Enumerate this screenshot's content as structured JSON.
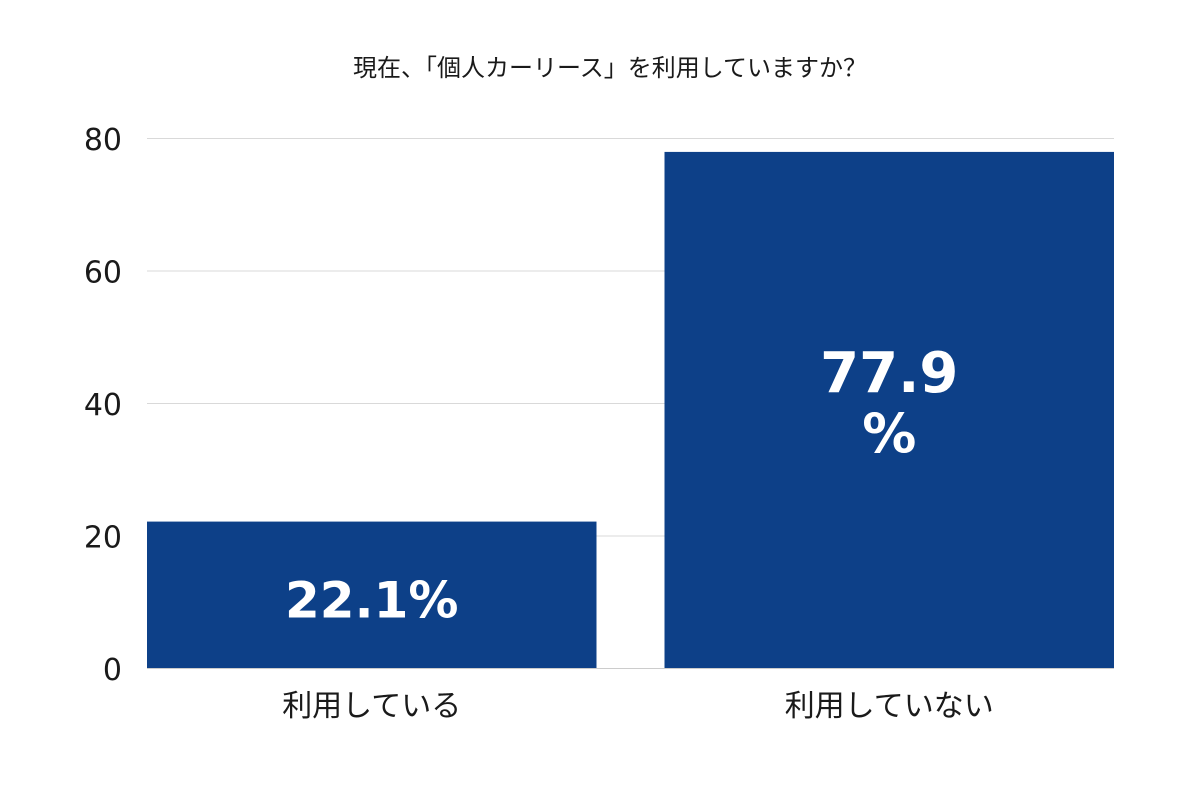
{
  "chart_data": {
    "type": "bar",
    "title": "現在、「個人カーリース」を利用していますか？",
    "categories": [
      "利用している",
      "利用していない"
    ],
    "values": [
      22.1,
      77.9
    ],
    "value_labels": [
      "22.1%",
      "77.9%"
    ],
    "ylim": [
      0,
      80
    ],
    "yticks": [
      0,
      20,
      40,
      60,
      80
    ],
    "grid": true,
    "bar_color": "#0d4088",
    "label_color": "#ffffff"
  }
}
